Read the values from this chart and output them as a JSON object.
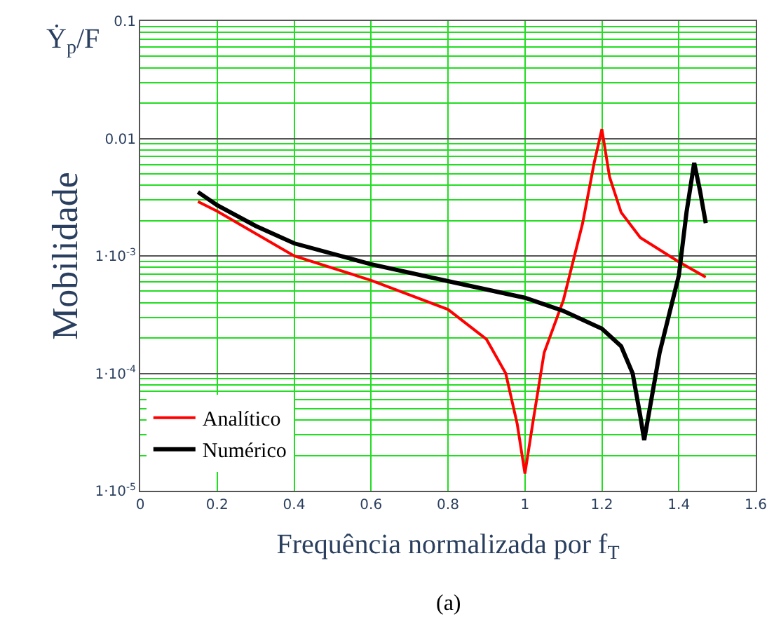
{
  "chart_data": {
    "type": "line",
    "xlabel": "Frequência normalizada por f$_{T}$",
    "ylabel": "Mobilidade",
    "annotations": [
      "Ẏ$_{p}$/F",
      "(a)"
    ],
    "log": "y",
    "grid": true,
    "legend": "bottom left",
    "line_style": "solid",
    "xlim": [
      0,
      1.6
    ],
    "xticks": [
      0,
      0.2,
      0.4,
      0.6,
      0.8,
      1,
      1.2,
      1.4,
      1.6
    ],
    "ylim": [
      1e-05,
      0.1
    ],
    "yticks": [
      {
        "value": 1e-05,
        "label": "1·10$^{-5}$"
      },
      {
        "value": 0.0001,
        "label": "1·10$^{-4}$"
      },
      {
        "value": 0.001,
        "label": "1·10$^{-3}$"
      },
      0.01,
      0.1
    ],
    "series": [
      {
        "name": "Analítico",
        "color": "#ff0000",
        "x": [
          0.15,
          0.2,
          0.4,
          0.6,
          0.8,
          0.9,
          0.95,
          0.98,
          1.0,
          1.02,
          1.05,
          1.1,
          1.15,
          1.18,
          1.2,
          1.22,
          1.25,
          1.3,
          1.4,
          1.47
        ],
        "values": [
          0.0029,
          0.0024,
          0.001,
          0.00062,
          0.00035,
          0.000195,
          0.0001,
          3.7e-05,
          1.4e-05,
          3.7e-05,
          0.00015,
          0.00042,
          0.0019,
          0.0062,
          0.012,
          0.0047,
          0.00235,
          0.00143,
          0.00089,
          0.00066
        ]
      },
      {
        "name": "Numérico",
        "color": "#000000",
        "x": [
          0.15,
          0.2,
          0.3,
          0.4,
          0.6,
          0.8,
          1.0,
          1.1,
          1.2,
          1.25,
          1.28,
          1.3,
          1.31,
          1.35,
          1.4,
          1.42,
          1.44,
          1.455,
          1.47
        ],
        "values": [
          0.0035,
          0.0027,
          0.0018,
          0.00128,
          0.00085,
          0.00061,
          0.00044,
          0.00034,
          0.00024,
          0.00017,
          0.0001,
          4.3e-05,
          2.7e-05,
          0.00015,
          0.00068,
          0.00235,
          0.0062,
          0.0036,
          0.0019
        ]
      }
    ]
  }
}
